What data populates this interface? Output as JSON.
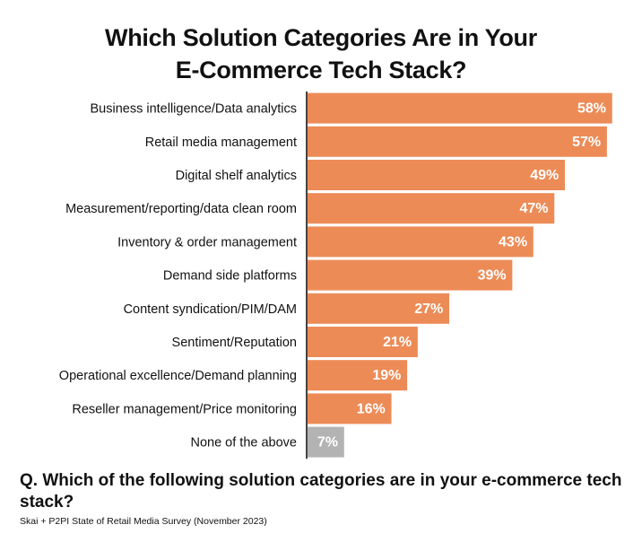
{
  "title_line1": "Which Solution Categories Are in Your",
  "title_line2": "E-Commerce Tech Stack?",
  "question": "Q. Which of the following solution categories are in your e-commerce tech stack?",
  "source": "Skai + P2PI State of Retail Media Survey (November 2023)",
  "colors": {
    "bar": "#ED8B57",
    "bar_muted": "#B3B3B3",
    "axis": "#000000",
    "value_text": "#FFFFFF"
  },
  "chart_data": {
    "type": "bar",
    "orientation": "horizontal",
    "categories": [
      "Business intelligence/Data analytics",
      "Retail media management",
      "Digital shelf analytics",
      "Measurement/reporting/data clean room",
      "Inventory & order management",
      "Demand side platforms",
      "Content syndication/PIM/DAM",
      "Sentiment/Reputation",
      "Operational excellence/Demand planning",
      "Reseller management/Price monitoring",
      "None of the above"
    ],
    "values": [
      58,
      57,
      49,
      47,
      43,
      39,
      27,
      21,
      19,
      16,
      7
    ],
    "value_labels": [
      "58%",
      "57%",
      "49%",
      "47%",
      "43%",
      "39%",
      "27%",
      "21%",
      "19%",
      "16%",
      "7%"
    ],
    "muted_categories": [
      "None of the above"
    ],
    "xlim": [
      0,
      58
    ],
    "grid": false,
    "legend": "none"
  }
}
